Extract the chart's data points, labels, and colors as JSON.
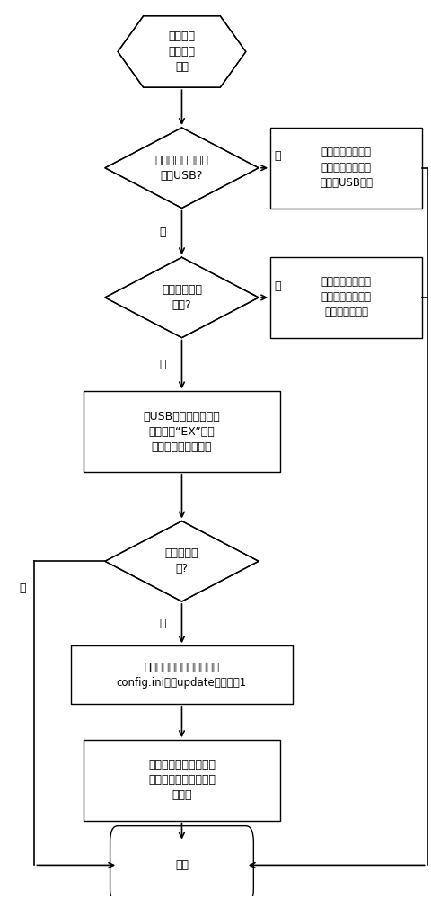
{
  "bg_color": "#ffffff",
  "line_color": "#000000",
  "font_size": 9,
  "font_family": "SimSun",
  "start_text": "人机交互\n界面确认\n更新",
  "d1_text": "控制系统检查是否\n插上USB?",
  "box1_text": "通知人机交互界面\n升级失败，并提示\n未找到USB设备",
  "d2_text": "升级文件是否\n完整?",
  "box2_text": "通知人机交互界面\n升级失败，并提示\n升级文件不完整",
  "box3_text": "将USB中的升级文件添\n加后缀名“EX”后复\n制到运动控制板卡中",
  "d3_text": "复制是否成\n功?",
  "box4_text": "将本地文件夹中的配置文件\nconfig.ini中的update的値写为1",
  "box5_text": "通知人机交互界面升级\n准备完成，提示用户重\n启系统",
  "end_text": "结束",
  "yes_label": "是",
  "no_label": "否"
}
